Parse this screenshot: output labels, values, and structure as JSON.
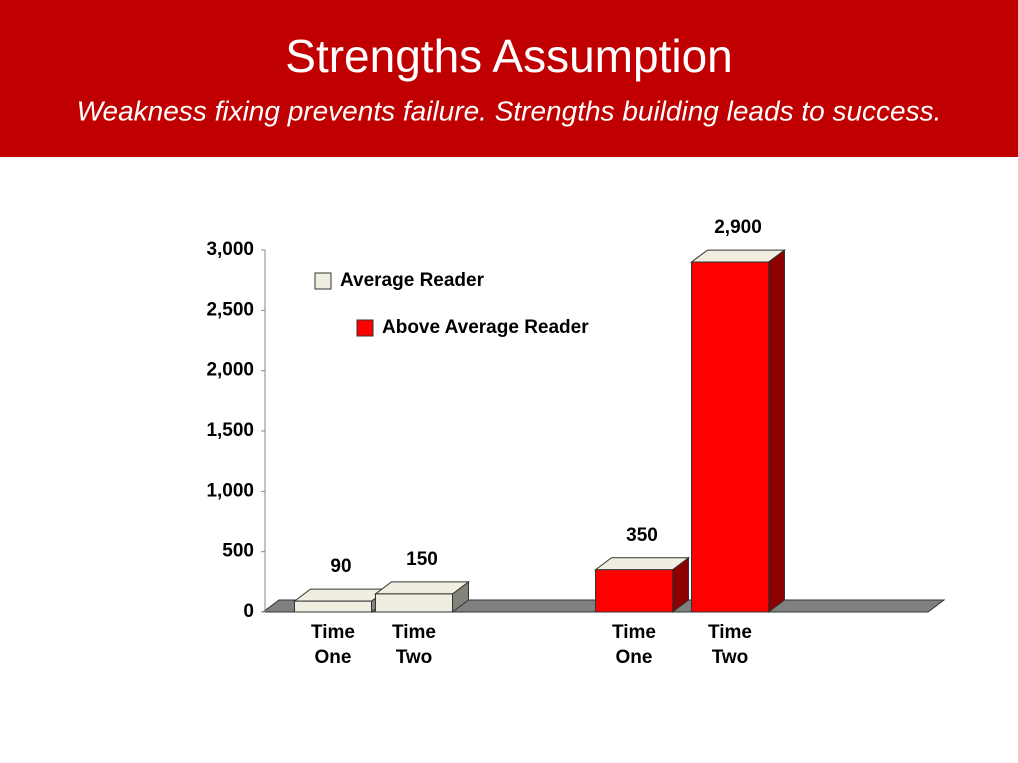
{
  "chart_data": {
    "type": "bar3d",
    "title": "Strengths Assumption",
    "subtitle": "Weakness fixing prevents failure.  Strengths building leads to success.",
    "categories": [
      "Time One",
      "Time Two",
      "Time One",
      "Time Two"
    ],
    "series": [
      {
        "name": "Average Reader",
        "color": "#f0eee0",
        "values": [
          90,
          150,
          null,
          null
        ],
        "value_labels": [
          "90",
          "150",
          null,
          null
        ]
      },
      {
        "name": "Above Average Reader",
        "color": "#ff0000",
        "values": [
          null,
          null,
          350,
          2900
        ],
        "value_labels": [
          null,
          null,
          "350",
          "2,900"
        ]
      }
    ],
    "ylim": [
      0,
      3000
    ],
    "yticks": [
      0,
      500,
      {
        "value": 1000,
        "label": "1,000"
      },
      {
        "value": 1500,
        "label": "1,500"
      },
      {
        "value": 2000,
        "label": "2,000"
      },
      {
        "value": 2500,
        "label": "2,500"
      },
      {
        "value": 3000,
        "label": "3,000"
      }
    ]
  }
}
